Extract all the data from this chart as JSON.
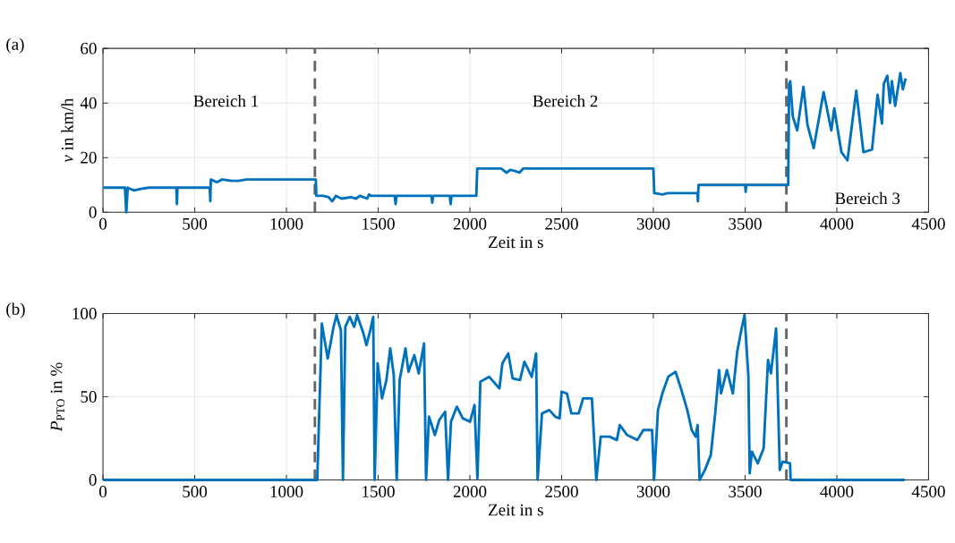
{
  "chart_data": [
    {
      "type": "line",
      "title": "(a)",
      "xlabel": "Zeit in s",
      "ylabel": "*v* in km/h",
      "xlim": [
        0,
        4500
      ],
      "ylim": [
        0,
        60
      ],
      "xticks": [
        0,
        500,
        1000,
        1500,
        2000,
        2500,
        3000,
        3500,
        4000,
        4500
      ],
      "yticks": [
        0,
        20,
        40,
        60
      ],
      "grid": true,
      "line_style": "solid",
      "marker": "none",
      "x": [
        0,
        120,
        127,
        135,
        150,
        170,
        200,
        250,
        400,
        403,
        406,
        560,
        582,
        585,
        588,
        620,
        650,
        700,
        740,
        780,
        1150,
        1160,
        1163,
        1200,
        1230,
        1250,
        1270,
        1300,
        1350,
        1380,
        1400,
        1440,
        1450,
        1460,
        1590,
        1595,
        1600,
        1790,
        1795,
        1800,
        1890,
        1895,
        1900,
        2035,
        2040,
        2170,
        2200,
        2220,
        2250,
        2270,
        2290,
        3000,
        3005,
        3050,
        3080,
        3240,
        3243,
        3246,
        3500,
        3503,
        3506,
        3735,
        3740,
        3746,
        3760,
        3784,
        3818,
        3840,
        3874,
        3928,
        3970,
        3986,
        4025,
        4058,
        4106,
        4145,
        4192,
        4222,
        4246,
        4256,
        4275,
        4290,
        4300,
        4318,
        4346,
        4360,
        4375
      ],
      "series": [
        {
          "color": "#0072bd",
          "values": [
            9,
            9,
            0,
            9,
            8.5,
            8,
            8.5,
            9,
            9,
            3,
            9,
            9,
            9,
            4,
            12,
            11,
            12,
            11.5,
            11.5,
            12,
            12,
            12,
            6,
            6,
            5.5,
            4,
            6,
            5,
            5.5,
            5,
            6,
            5,
            6.5,
            6,
            6,
            3,
            6,
            6,
            3.5,
            6,
            6,
            3,
            6,
            6,
            16,
            16,
            14.5,
            15.5,
            15,
            14.5,
            16,
            16,
            7,
            6.5,
            7,
            7,
            4,
            10,
            10,
            7.5,
            10,
            10,
            47,
            48,
            35,
            30,
            46,
            32,
            23.5,
            44,
            30,
            38,
            22,
            19,
            44.5,
            22,
            23,
            43,
            32.5,
            47,
            50,
            40,
            48,
            39,
            51,
            45,
            49
          ]
        }
      ],
      "ref_lines": [
        {
          "axis": "x",
          "value": 1155,
          "color": "#666666",
          "line_style": "dashed"
        },
        {
          "axis": "x",
          "value": 3725,
          "color": "#666666",
          "line_style": "dashed"
        }
      ],
      "annotations": [
        "Bereich 1",
        "Bereich 2",
        "Bereich 3"
      ]
    },
    {
      "type": "line",
      "title": "(b)",
      "xlabel": "Zeit in s",
      "ylabel": "*P*$_{PTO}$ in %",
      "xlim": [
        0,
        4500
      ],
      "ylim": [
        0,
        100
      ],
      "xticks": [
        0,
        500,
        1000,
        1500,
        2000,
        2500,
        3000,
        3500,
        4000,
        4500
      ],
      "yticks": [
        0,
        50,
        100
      ],
      "grid": true,
      "line_style": "solid",
      "marker": "none",
      "x": [
        0,
        1168,
        1193,
        1225,
        1257,
        1273,
        1297,
        1308,
        1321,
        1345,
        1369,
        1385,
        1417,
        1436,
        1457,
        1473,
        1481,
        1497,
        1521,
        1545,
        1566,
        1585,
        1601,
        1617,
        1649,
        1665,
        1697,
        1721,
        1750,
        1761,
        1777,
        1809,
        1833,
        1865,
        1881,
        1897,
        1929,
        1961,
        2001,
        2025,
        2041,
        2057,
        2105,
        2161,
        2177,
        2209,
        2233,
        2273,
        2297,
        2337,
        2361,
        2369,
        2393,
        2433,
        2465,
        2489,
        2500,
        2529,
        2553,
        2593,
        2617,
        2665,
        2689,
        2713,
        2761,
        2801,
        2817,
        2857,
        2913,
        2945,
        2993,
        3004,
        3025,
        3049,
        3081,
        3121,
        3153,
        3185,
        3209,
        3230,
        3241,
        3252,
        3281,
        3313,
        3337,
        3358,
        3369,
        3401,
        3433,
        3457,
        3481,
        3497,
        3518,
        3525,
        3537,
        3569,
        3601,
        3625,
        3641,
        3669,
        3689,
        3705,
        3745,
        3748,
        4370
      ],
      "series": [
        {
          "color": "#0072bd",
          "values": [
            0,
            0,
            94,
            73,
            92,
            99,
            90,
            0,
            92,
            98,
            92,
            99,
            89,
            81,
            90,
            98,
            0,
            70,
            49,
            60,
            79,
            63,
            0,
            60,
            79,
            65,
            75,
            64,
            82,
            0,
            38,
            27,
            36,
            41,
            0,
            35,
            44,
            37,
            35,
            45,
            1,
            59,
            62,
            55,
            70,
            76,
            61,
            60,
            71,
            62,
            76,
            0,
            40,
            42,
            38,
            37,
            53,
            52,
            40,
            40,
            49,
            49,
            0,
            26,
            26,
            24,
            33,
            27,
            24,
            30,
            30,
            0,
            42,
            52,
            62,
            65,
            54,
            42,
            30,
            26,
            33,
            0,
            6,
            15,
            40,
            66,
            52,
            66,
            52,
            77,
            91,
            99,
            62,
            4,
            17,
            10,
            19,
            72,
            64,
            91,
            6,
            11,
            10,
            0,
            0
          ]
        }
      ],
      "ref_lines": [
        {
          "axis": "x",
          "value": 1155,
          "color": "#666666",
          "line_style": "dashed"
        },
        {
          "axis": "x",
          "value": 3725,
          "color": "#666666",
          "line_style": "dashed"
        }
      ]
    }
  ]
}
